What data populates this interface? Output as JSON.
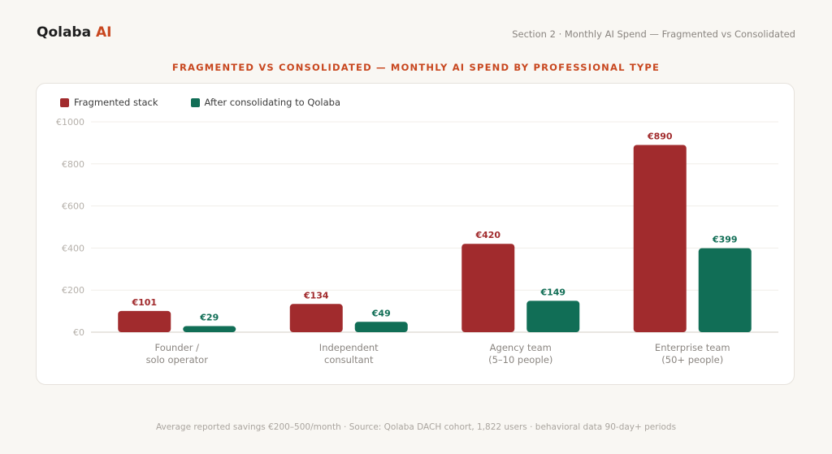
{
  "header": {
    "brand_name": "Qolaba",
    "brand_accent": "AI",
    "section_label": "Section 2 · Monthly AI Spend — Fragmented vs Consolidated"
  },
  "colors": {
    "accent": "#c8471f",
    "fragmented": "#a12b2d",
    "consolidated": "#116e56"
  },
  "chart_data": {
    "type": "bar",
    "title": "FRAGMENTED VS CONSOLIDATED — MONTHLY AI SPEND BY PROFESSIONAL TYPE",
    "xlabel": "",
    "ylabel": "",
    "ylim": [
      0,
      1000
    ],
    "yticks": [
      0,
      200,
      400,
      600,
      800,
      1000
    ],
    "ytick_labels": [
      "€0",
      "€200",
      "€400",
      "€600",
      "€800",
      "€1000"
    ],
    "grid": true,
    "legend_position": "top-left",
    "categories": [
      [
        "Founder /",
        "solo operator"
      ],
      [
        "Independent",
        "consultant"
      ],
      [
        "Agency team",
        "(5–10 people)"
      ],
      [
        "Enterprise team",
        "(50+ people)"
      ]
    ],
    "series": [
      {
        "name": "Fragmented stack",
        "color": "#a12b2d",
        "values": [
          101,
          134,
          420,
          890
        ],
        "labels": [
          "€101",
          "€134",
          "€420",
          "€890"
        ]
      },
      {
        "name": "After consolidating to Qolaba",
        "color": "#116e56",
        "values": [
          29,
          49,
          149,
          399
        ],
        "labels": [
          "€29",
          "€49",
          "€149",
          "€399"
        ]
      }
    ]
  },
  "footer": "Average reported savings €200–500/month · Source: Qolaba DACH cohort, 1,822 users · behavioral data 90-day+ periods"
}
